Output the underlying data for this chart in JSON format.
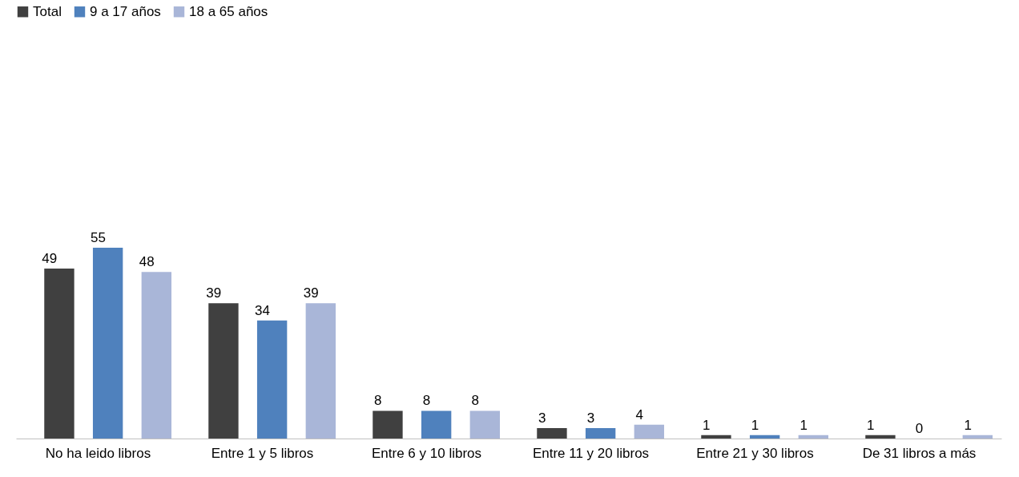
{
  "chart_data": {
    "type": "bar",
    "categories": [
      "No ha leido libros",
      "Entre 1 y 5 libros",
      "Entre 6 y 10 libros",
      "Entre 11 y 20 libros",
      "Entre 21 y 30 libros",
      "De 31 libros a más"
    ],
    "series": [
      {
        "name": "Total",
        "color": "#404040",
        "values": [
          49,
          39,
          8,
          3,
          1,
          1
        ]
      },
      {
        "name": "9 a 17 años",
        "color": "#4f81bd",
        "values": [
          55,
          34,
          8,
          3,
          1,
          0
        ]
      },
      {
        "name": "18 a 65 años",
        "color": "#a9b6d8",
        "values": [
          48,
          39,
          8,
          4,
          1,
          1
        ]
      }
    ],
    "data_labels": true,
    "legend": "top",
    "grid": false
  }
}
